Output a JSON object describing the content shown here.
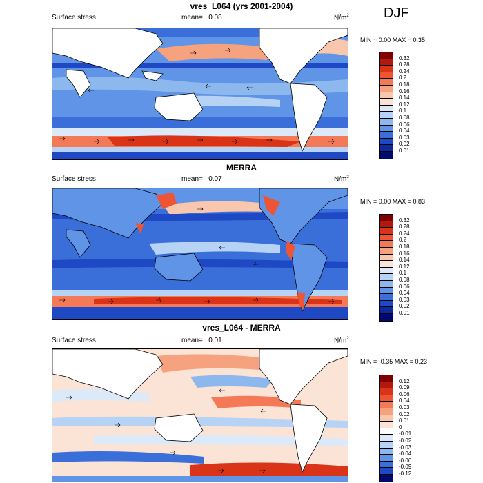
{
  "season": "DJF",
  "panels": [
    {
      "title": "vres_L064 (yrs 2001-2004)",
      "left_label": "Surface stress",
      "mean_label": "mean=",
      "mean_value": "0.08",
      "units": "N/m",
      "units_sup": "2",
      "minmax": "MIN =   0.00 MAX =   0.35",
      "colorbar_labels": [
        "0.32",
        "0.28",
        "0.24",
        "0.2",
        "0.18",
        "0.16",
        "0.14",
        "0.12",
        "0.1",
        "0.08",
        "0.06",
        "0.04",
        "0.03",
        "0.02",
        "0.01"
      ]
    },
    {
      "title": "MERRA",
      "left_label": "Surface stress",
      "mean_label": "mean=",
      "mean_value": "0.07",
      "units": "N/m",
      "units_sup": "2",
      "minmax": "MIN =   0.00 MAX =   0.83",
      "colorbar_labels": [
        "0.32",
        "0.28",
        "0.24",
        "0.2",
        "0.18",
        "0.16",
        "0.14",
        "0.12",
        "0.1",
        "0.08",
        "0.06",
        "0.04",
        "0.03",
        "0.02",
        "0.01"
      ]
    },
    {
      "title": "vres_L064 - MERRA",
      "left_label": "Surface stress",
      "mean_label": "mean=",
      "mean_value": "0.01",
      "units": "N/m",
      "units_sup": "2",
      "minmax": "MIN =  -0.35 MAX =   0.23",
      "colorbar_labels": [
        "0.12",
        "0.09",
        "0.06",
        "0.04",
        "0.03",
        "0.02",
        "0.01",
        "0",
        "-0.01",
        "-0.02",
        "-0.03",
        "-0.04",
        "-0.06",
        "-0.09",
        "-0.12"
      ]
    }
  ],
  "colors": {
    "seq": [
      "#7f0000",
      "#b2180c",
      "#d93318",
      "#ee5535",
      "#f47a57",
      "#f7a27f",
      "#f9c7ad",
      "#fbe4d6",
      "#dce9f8",
      "#b6d2f4",
      "#8db8ee",
      "#5f94e6",
      "#3a6fd9",
      "#1f49c4",
      "#0c2aa0",
      "#000a6e"
    ],
    "div": [
      "#7f0000",
      "#b2180c",
      "#d93318",
      "#ee5535",
      "#f47a57",
      "#f7a27f",
      "#f9c7ad",
      "#fbe4d6",
      "#ffffff",
      "#dce9f8",
      "#b6d2f4",
      "#8db8ee",
      "#5f94e6",
      "#3a6fd9",
      "#1f49c4",
      "#000a6e"
    ]
  }
}
